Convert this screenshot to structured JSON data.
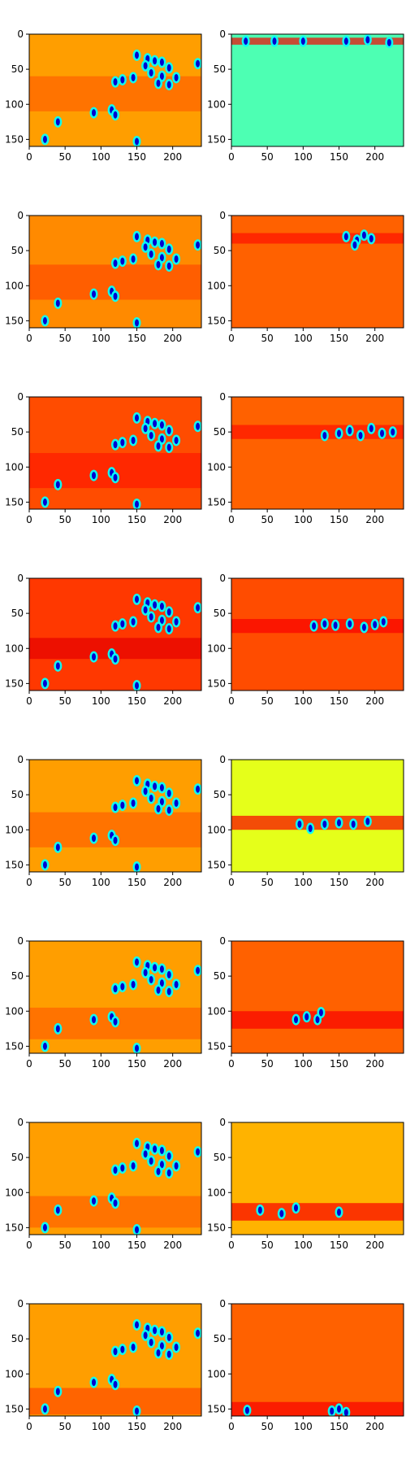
{
  "chart_data": {
    "type": "heatmap",
    "colormap": "jet",
    "grid": false,
    "layout": {
      "rows": 8,
      "cols": 2
    },
    "xlim": [
      0,
      240
    ],
    "ylim": [
      160,
      0
    ],
    "xticks": [
      0,
      50,
      100,
      150,
      200
    ],
    "yticks": [
      0,
      50,
      100,
      150
    ],
    "xtick_labels": [
      "0",
      "50",
      "100",
      "150",
      "200"
    ],
    "ytick_labels": [
      "0",
      "50",
      "100",
      "150"
    ],
    "shared_blobs": [
      [
        150,
        30
      ],
      [
        165,
        35
      ],
      [
        175,
        38
      ],
      [
        185,
        40
      ],
      [
        162,
        45
      ],
      [
        195,
        48
      ],
      [
        170,
        55
      ],
      [
        185,
        60
      ],
      [
        205,
        62
      ],
      [
        145,
        62
      ],
      [
        180,
        70
      ],
      [
        195,
        72
      ],
      [
        120,
        68
      ],
      [
        130,
        65
      ],
      [
        235,
        42
      ],
      [
        90,
        112
      ],
      [
        115,
        108
      ],
      [
        120,
        115
      ],
      [
        40,
        125
      ],
      [
        22,
        150
      ],
      [
        150,
        153
      ]
    ],
    "panels": [
      {
        "row": 0,
        "col": 0,
        "title": "",
        "background": 0.72,
        "band": {
          "y": [
            60,
            110
          ],
          "value": 0.78
        },
        "blobs": "shared"
      },
      {
        "row": 0,
        "col": 1,
        "title": "",
        "background": 0.45,
        "band": {
          "y": [
            5,
            15
          ],
          "value": 0.88
        },
        "blobs": [
          [
            20,
            10
          ],
          [
            60,
            10
          ],
          [
            100,
            10
          ],
          [
            160,
            10
          ],
          [
            190,
            8
          ],
          [
            220,
            12
          ]
        ]
      },
      {
        "row": 1,
        "col": 0,
        "title": "",
        "background": 0.74,
        "band": {
          "y": [
            70,
            120
          ],
          "value": 0.8
        },
        "blobs": "shared"
      },
      {
        "row": 1,
        "col": 1,
        "title": "",
        "background": 0.78,
        "band": {
          "y": [
            25,
            40
          ],
          "value": 0.86
        },
        "blobs": [
          [
            160,
            30
          ],
          [
            175,
            35
          ],
          [
            185,
            28
          ],
          [
            195,
            33
          ],
          [
            172,
            42
          ]
        ]
      },
      {
        "row": 2,
        "col": 0,
        "title": "",
        "background": 0.8,
        "band": {
          "y": [
            80,
            130
          ],
          "value": 0.85
        },
        "blobs": "shared"
      },
      {
        "row": 2,
        "col": 1,
        "title": "",
        "background": 0.78,
        "band": {
          "y": [
            40,
            60
          ],
          "value": 0.86
        },
        "blobs": [
          [
            130,
            55
          ],
          [
            150,
            52
          ],
          [
            165,
            48
          ],
          [
            180,
            55
          ],
          [
            195,
            45
          ],
          [
            210,
            52
          ],
          [
            225,
            50
          ]
        ]
      },
      {
        "row": 3,
        "col": 0,
        "title": "",
        "background": 0.82,
        "band": {
          "y": [
            85,
            115
          ],
          "value": 0.9
        },
        "blobs": "shared"
      },
      {
        "row": 3,
        "col": 1,
        "title": "",
        "background": 0.8,
        "band": {
          "y": [
            58,
            78
          ],
          "value": 0.88
        },
        "blobs": [
          [
            115,
            68
          ],
          [
            130,
            65
          ],
          [
            145,
            67
          ],
          [
            165,
            65
          ],
          [
            185,
            70
          ],
          [
            200,
            66
          ],
          [
            212,
            62
          ]
        ]
      },
      {
        "row": 4,
        "col": 0,
        "title": "",
        "background": 0.72,
        "band": {
          "y": [
            75,
            125
          ],
          "value": 0.78
        },
        "blobs": "shared"
      },
      {
        "row": 4,
        "col": 1,
        "title": "",
        "background": 0.6,
        "band": {
          "y": [
            80,
            100
          ],
          "value": 0.88
        },
        "blobs": [
          [
            95,
            92
          ],
          [
            110,
            98
          ],
          [
            130,
            92
          ],
          [
            150,
            90
          ],
          [
            170,
            92
          ],
          [
            190,
            88
          ]
        ]
      },
      {
        "row": 5,
        "col": 0,
        "title": "",
        "background": 0.72,
        "band": {
          "y": [
            95,
            140
          ],
          "value": 0.78
        },
        "blobs": "shared"
      },
      {
        "row": 5,
        "col": 1,
        "title": "",
        "background": 0.78,
        "band": {
          "y": [
            100,
            125
          ],
          "value": 0.88
        },
        "blobs": [
          [
            90,
            112
          ],
          [
            105,
            108
          ],
          [
            120,
            112
          ],
          [
            125,
            102
          ]
        ]
      },
      {
        "row": 6,
        "col": 0,
        "title": "",
        "background": 0.72,
        "band": {
          "y": [
            105,
            150
          ],
          "value": 0.78
        },
        "blobs": "shared"
      },
      {
        "row": 6,
        "col": 1,
        "title": "",
        "background": 0.7,
        "band": {
          "y": [
            115,
            140
          ],
          "value": 0.88
        },
        "blobs": [
          [
            40,
            125
          ],
          [
            90,
            122
          ],
          [
            70,
            130
          ],
          [
            150,
            128
          ]
        ]
      },
      {
        "row": 7,
        "col": 0,
        "title": "",
        "background": 0.72,
        "band": {
          "y": [
            120,
            158
          ],
          "value": 0.8
        },
        "blobs": "shared"
      },
      {
        "row": 7,
        "col": 1,
        "title": "",
        "background": 0.78,
        "band": {
          "y": [
            140,
            160
          ],
          "value": 0.88
        },
        "blobs": [
          [
            22,
            152
          ],
          [
            140,
            153
          ],
          [
            150,
            150
          ],
          [
            160,
            155
          ]
        ]
      }
    ]
  }
}
